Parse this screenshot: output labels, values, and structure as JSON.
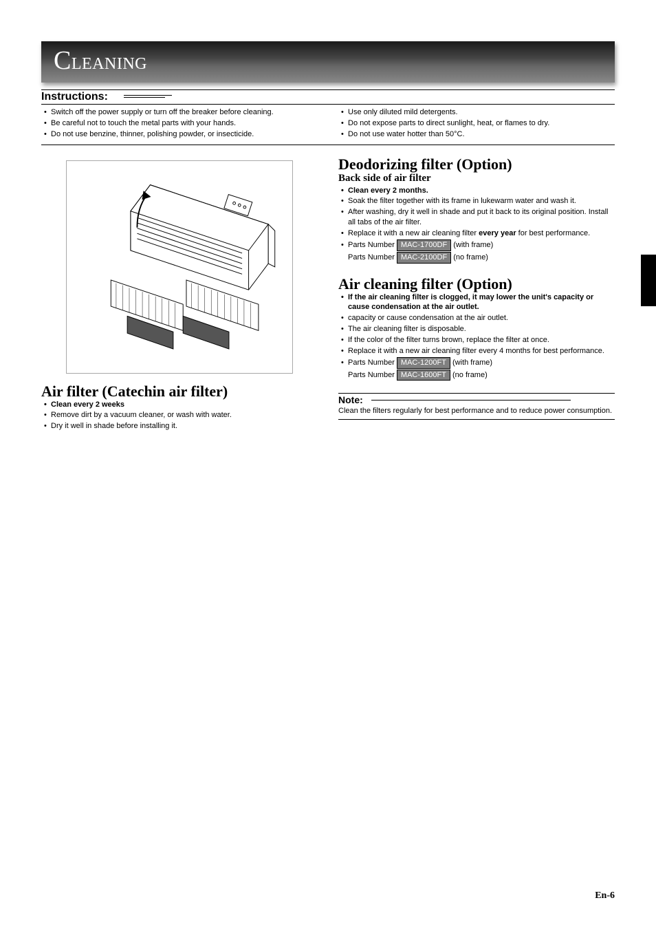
{
  "header": {
    "title_prefix": "C",
    "title_rest": "LEANING"
  },
  "instructions": {
    "heading": "Instructions:",
    "left": [
      "Switch off the power supply or turn off the breaker before cleaning.",
      "Be careful not to touch the metal parts with your hands.",
      "Do not use benzine, thinner, polishing powder, or insecticide."
    ],
    "right": [
      "Use only diluted mild detergents.",
      "Do not expose parts to direct sunlight, heat, or flames to dry.",
      "Do not use water hotter than 50°C."
    ]
  },
  "air_filter": {
    "title": "Air filter (Catechin air filter)",
    "items": [
      {
        "text": "Clean every 2 weeks",
        "bold": true
      },
      {
        "text": "Remove dirt by a vacuum cleaner, or wash with water."
      },
      {
        "text": "Dry it well in shade before installing it."
      }
    ]
  },
  "deodorizing": {
    "title": "Deodorizing filter (Option)",
    "subtitle": "Back side of air filter",
    "items": [
      {
        "text": "Clean every 2 months.",
        "bold": true
      },
      {
        "text": "Soak the filter together with its frame in lukewarm water and wash it."
      },
      {
        "text": "After washing, dry it well in shade and put it back to its original position. Install all tabs of the air filter."
      },
      {
        "html": "Replace it with a new air cleaning filter <b>every year</b> for best performance."
      }
    ],
    "parts": [
      {
        "prefix": "Parts Number",
        "code": "MAC-1700DF",
        "suffix": "(with frame)",
        "bullet": true
      },
      {
        "prefix": "Parts Number",
        "code": "MAC-2100DF",
        "suffix": "(no frame)",
        "bullet": false
      }
    ]
  },
  "air_cleaning": {
    "title": "Air cleaning filter (Option)",
    "items": [
      {
        "text": "If the air cleaning filter is clogged, it may lower the unit's capacity or cause condensation at the air outlet.",
        "bold": true
      },
      {
        "text": "capacity or cause condensation at the air outlet."
      },
      {
        "text": "The air cleaning filter is disposable."
      },
      {
        "text": "If the color of the filter turns brown, replace the filter at once."
      },
      {
        "text": "Replace it with a new air cleaning filter every 4 months for best performance."
      }
    ],
    "parts": [
      {
        "prefix": "Parts Number",
        "code": "MAC-1200FT",
        "suffix": "(with frame)",
        "bullet": true
      },
      {
        "prefix": "Parts Number",
        "code": "MAC-1600FT",
        "suffix": "(no frame)",
        "bullet": false
      }
    ]
  },
  "note": {
    "heading": "Note:",
    "body": "Clean the filters regularly for best performance and to reduce power consumption."
  },
  "footer": "En-6",
  "colors": {
    "border_gray": "#a8a8a8",
    "part_bg": "#808080"
  }
}
